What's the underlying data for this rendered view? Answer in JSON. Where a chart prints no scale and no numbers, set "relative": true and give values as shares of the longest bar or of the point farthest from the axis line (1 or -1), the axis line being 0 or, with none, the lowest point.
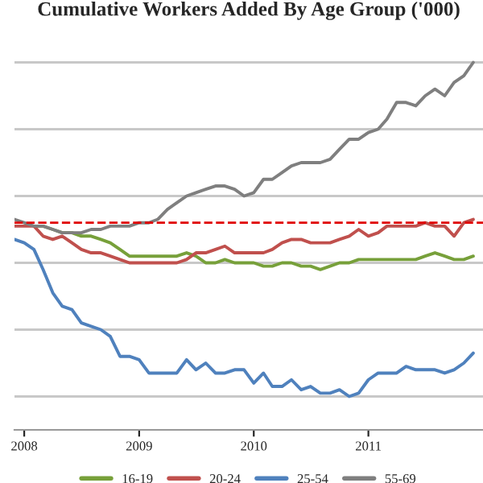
{
  "chart_data": {
    "type": "line",
    "title": "Cumulative Workers Added By Age Group ('000)",
    "relative": true,
    "x": [
      "2007-12",
      "2008-01",
      "2008-02",
      "2008-03",
      "2008-04",
      "2008-05",
      "2008-06",
      "2008-07",
      "2008-08",
      "2008-09",
      "2008-10",
      "2008-11",
      "2008-12",
      "2009-01",
      "2009-02",
      "2009-03",
      "2009-04",
      "2009-05",
      "2009-06",
      "2009-07",
      "2009-08",
      "2009-09",
      "2009-10",
      "2009-11",
      "2009-12",
      "2010-01",
      "2010-02",
      "2010-03",
      "2010-04",
      "2010-05",
      "2010-06",
      "2010-07",
      "2010-08",
      "2010-09",
      "2010-10",
      "2010-11",
      "2010-12",
      "2011-01",
      "2011-02",
      "2011-03",
      "2011-04",
      "2011-05",
      "2011-06",
      "2011-07",
      "2011-08",
      "2011-09",
      "2011-10",
      "2011-11",
      "2011-12"
    ],
    "series": [
      {
        "name": "16-19",
        "color": "#77a03a",
        "values": [
          null,
          null,
          0.51,
          0.51,
          0.5,
          0.49,
          0.49,
          0.48,
          0.48,
          0.47,
          0.46,
          0.44,
          0.42,
          0.42,
          0.42,
          0.42,
          0.42,
          0.42,
          0.43,
          0.42,
          0.4,
          0.4,
          0.41,
          0.4,
          0.4,
          0.4,
          0.39,
          0.39,
          0.4,
          0.4,
          0.39,
          0.39,
          0.38,
          0.39,
          0.4,
          0.4,
          0.41,
          0.41,
          0.41,
          0.41,
          0.41,
          0.41,
          0.41,
          0.42,
          0.43,
          0.42,
          0.41,
          0.41,
          0.42
        ]
      },
      {
        "name": "20-24",
        "color": "#c0504d",
        "values": [
          0.51,
          0.51,
          0.51,
          0.48,
          0.47,
          0.48,
          0.46,
          0.44,
          0.43,
          0.43,
          0.42,
          0.41,
          0.4,
          0.4,
          0.4,
          0.4,
          0.4,
          0.4,
          0.41,
          0.43,
          0.43,
          0.44,
          0.45,
          0.43,
          0.43,
          0.43,
          0.43,
          0.44,
          0.46,
          0.47,
          0.47,
          0.46,
          0.46,
          0.46,
          0.47,
          0.48,
          0.5,
          0.48,
          0.49,
          0.51,
          0.51,
          0.51,
          0.51,
          0.52,
          0.51,
          0.51,
          0.48,
          0.52,
          0.53
        ]
      },
      {
        "name": "25-54",
        "color": "#4f81bd",
        "values": [
          0.47,
          0.46,
          0.44,
          0.38,
          0.31,
          0.27,
          0.26,
          0.22,
          0.21,
          0.2,
          0.18,
          0.12,
          0.12,
          0.11,
          0.07,
          0.07,
          0.07,
          0.07,
          0.11,
          0.08,
          0.1,
          0.07,
          0.07,
          0.08,
          0.08,
          0.04,
          0.07,
          0.03,
          0.03,
          0.05,
          0.02,
          0.03,
          0.01,
          0.01,
          0.02,
          0,
          0.01,
          0.05,
          0.07,
          0.07,
          0.07,
          0.09,
          0.08,
          0.08,
          0.08,
          0.07,
          0.08,
          0.1,
          0.13
        ]
      },
      {
        "name": "55-69",
        "color": "#7f7f7f",
        "values": [
          0.53,
          0.52,
          0.51,
          0.51,
          0.5,
          0.49,
          0.49,
          0.49,
          0.5,
          0.5,
          0.51,
          0.51,
          0.51,
          0.52,
          0.52,
          0.53,
          0.56,
          0.58,
          0.6,
          0.61,
          0.62,
          0.63,
          0.63,
          0.62,
          0.6,
          0.61,
          0.65,
          0.65,
          0.67,
          0.69,
          0.7,
          0.7,
          0.7,
          0.71,
          0.74,
          0.77,
          0.77,
          0.79,
          0.8,
          0.83,
          0.88,
          0.88,
          0.87,
          0.9,
          0.92,
          0.9,
          0.94,
          0.96,
          1
        ]
      }
    ],
    "xlim": [
      "2007-12",
      "2012-01"
    ],
    "xticks": [
      "2008",
      "2009",
      "2010",
      "2011"
    ],
    "ref_lines": [
      {
        "axis": "y",
        "value": 0.52,
        "color": "#e00000",
        "line_style": "dashed"
      }
    ],
    "grid": "y",
    "legend": "bottom",
    "marker": "none",
    "line_style": "solid"
  }
}
